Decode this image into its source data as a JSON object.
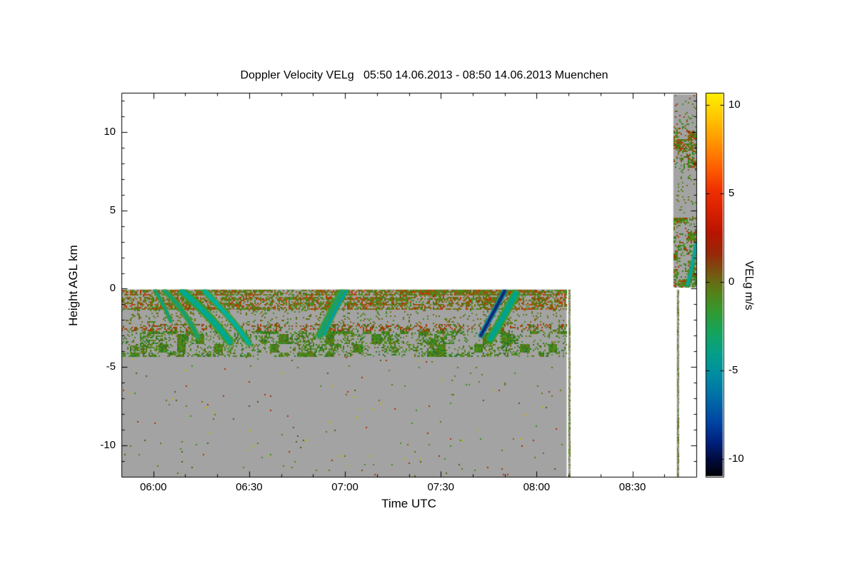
{
  "chart_data": {
    "type": "heatmap",
    "title": "Doppler Velocity VELg   05:50 14.06.2013 - 08:50 14.06.2013 Muenchen",
    "xlabel": "Time UTC",
    "ylabel": "Height AGL km",
    "x_range_labels": [
      "05:50",
      "08:50"
    ],
    "x_range_minutes": [
      350,
      530
    ],
    "y_range_km": [
      -12,
      12.5
    ],
    "x_ticks": [
      {
        "minute": 360,
        "label": "06:00"
      },
      {
        "minute": 390,
        "label": "06:30"
      },
      {
        "minute": 420,
        "label": "07:00"
      },
      {
        "minute": 450,
        "label": "07:30"
      },
      {
        "minute": 480,
        "label": "08:00"
      },
      {
        "minute": 510,
        "label": "08:30"
      }
    ],
    "x_minor_step_minutes": 10,
    "y_ticks": [
      {
        "value": 10,
        "label": "10"
      },
      {
        "value": 5,
        "label": "5"
      },
      {
        "value": 0,
        "label": "0"
      },
      {
        "value": -5,
        "label": "-5"
      },
      {
        "value": -10,
        "label": "-10"
      }
    ],
    "y_minor_step_km": 1,
    "background_color": "#FFFFFF",
    "no_data_color": "#A3A3A3",
    "colorbar": {
      "label": "VELg m/s",
      "value_range": [
        -11,
        10.7
      ],
      "ticks": [
        {
          "value": 10,
          "label": "10"
        },
        {
          "value": 5,
          "label": "5"
        },
        {
          "value": 0,
          "label": "0"
        },
        {
          "value": -5,
          "label": "-5"
        },
        {
          "value": -10,
          "label": "-10"
        }
      ],
      "stops": [
        [
          10.7,
          "#FFF000"
        ],
        [
          9.5,
          "#FFCC00"
        ],
        [
          8,
          "#FF9800"
        ],
        [
          6.5,
          "#FF6000"
        ],
        [
          5.2,
          "#F03000"
        ],
        [
          4,
          "#D82000"
        ],
        [
          2.8,
          "#B81400"
        ],
        [
          1.6,
          "#982808"
        ],
        [
          0.8,
          "#7E4A10"
        ],
        [
          0.2,
          "#6E6414"
        ],
        [
          -0.5,
          "#587E18"
        ],
        [
          -1.5,
          "#38982C"
        ],
        [
          -2.8,
          "#16A45C"
        ],
        [
          -4,
          "#04A088"
        ],
        [
          -5,
          "#00929E"
        ],
        [
          -6.3,
          "#0074A8"
        ],
        [
          -7.8,
          "#0048A4"
        ],
        [
          -9,
          "#002280"
        ],
        [
          -10,
          "#000C40"
        ],
        [
          -11,
          "#000004"
        ]
      ]
    },
    "blocks": [
      {
        "name": "lower-main",
        "t": [
          350,
          489.4
        ],
        "h": [
          -0.05,
          -12
        ]
      },
      {
        "name": "upper-right",
        "t": [
          522.8,
          530
        ],
        "h": [
          12.4,
          0.08
        ]
      }
    ],
    "texture_bands": [
      {
        "h": [
          -0.05,
          -1.3
        ],
        "density": 0.62,
        "clump": 0.35,
        "row_streaks": true,
        "colors": [
          "#6E6E10",
          "#7E7014",
          "#3E8E1E",
          "#4E8E1E",
          "#5E6610",
          "#B03400",
          "#8E5E10",
          "#3E8E1E",
          "#6E6E10",
          "#C84010"
        ]
      },
      {
        "h": [
          -1.3,
          -2.25
        ],
        "density": 0.14,
        "clump": 0.5,
        "colors": [
          "#6E6E10",
          "#3E8E1E",
          "#7E7014",
          "#5E6610"
        ]
      },
      {
        "h": [
          -2.25,
          -2.7
        ],
        "density": 0.4,
        "clump": 0.4,
        "colors": [
          "#B03000",
          "#A83808",
          "#6E6E10",
          "#3E7E1E",
          "#5E6610"
        ]
      },
      {
        "h": [
          -2.7,
          -4.3
        ],
        "density": 0.62,
        "clump": 0.85,
        "colors": [
          "#2E7E1E",
          "#3E8E1E",
          "#4E9420",
          "#5E7E14",
          "#2E6E2E",
          "#6E6E10"
        ]
      },
      {
        "h": [
          -4.3,
          -12
        ],
        "density": 0.008,
        "clump": 0.2,
        "colors": [
          "#6E6E10",
          "#3E8E1E",
          "#B03000",
          "#C8B400",
          "#58581A"
        ]
      }
    ],
    "column_patches": [
      {
        "h": [
          12.4,
          10.6
        ],
        "density": 0.1,
        "clump": 0.6,
        "colors": [
          "#3E8E1E",
          "#6E6E10",
          "#B03400"
        ]
      },
      {
        "h": [
          10.6,
          7.6
        ],
        "density": 0.5,
        "clump": 0.7,
        "colors": [
          "#2E7E1E",
          "#3E8E1E",
          "#6E6E10",
          "#8E5E10",
          "#B03400"
        ]
      },
      {
        "h": [
          7.6,
          4.6
        ],
        "density": 0.08,
        "clump": 0.6,
        "colors": [
          "#3E8E1E",
          "#6E6E10"
        ]
      },
      {
        "h": [
          4.6,
          0.08
        ],
        "density": 0.55,
        "clump": 0.7,
        "colors": [
          "#2E7E1E",
          "#3E8E1E",
          "#4E9420",
          "#6E6E10",
          "#B03400"
        ]
      }
    ],
    "streaks": [
      {
        "region": "lower-main",
        "w": 6,
        "colors": [
          "#3E9E2C",
          "#10A080"
        ],
        "p": [
          [
            360.5,
            -0.1
          ],
          [
            363,
            -1.0
          ],
          [
            365.5,
            -2.1
          ]
        ]
      },
      {
        "region": "lower-main",
        "w": 9,
        "colors": [
          "#4E9E30",
          "#18A070"
        ],
        "p": [
          [
            363.5,
            -0.15
          ],
          [
            369,
            -1.4
          ],
          [
            374,
            -3.1
          ]
        ]
      },
      {
        "region": "lower-main",
        "w": 13,
        "colors": [
          "#3E9E28",
          "#00A890"
        ],
        "p": [
          [
            369,
            -0.15
          ],
          [
            377,
            -1.7
          ],
          [
            384,
            -3.4
          ]
        ]
      },
      {
        "region": "lower-main",
        "w": 10,
        "colors": [
          "#3E9E28",
          "#00B0A0"
        ],
        "p": [
          [
            376,
            -0.15
          ],
          [
            384,
            -1.9
          ],
          [
            390,
            -3.5
          ]
        ]
      },
      {
        "region": "lower-main",
        "w": 12,
        "colors": [
          "#449E2C",
          "#18A070"
        ],
        "p": [
          [
            419,
            -0.2
          ],
          [
            415.5,
            -1.6
          ],
          [
            412,
            -3.0
          ]
        ]
      },
      {
        "region": "lower-main",
        "w": 7,
        "colors": [
          "#3E9E30",
          "#00A0A8"
        ],
        "p": [
          [
            420.5,
            -0.15
          ],
          [
            417,
            -1.4
          ],
          [
            413.5,
            -2.9
          ]
        ]
      },
      {
        "region": "lower-main",
        "w": 13,
        "colors": [
          "#3E9E2C",
          "#00A48C"
        ],
        "p": [
          [
            473.5,
            -0.3
          ],
          [
            469.5,
            -1.8
          ],
          [
            465.5,
            -3.2
          ]
        ]
      },
      {
        "region": "lower-main",
        "w": 8,
        "colors": [
          "#0090A8",
          "#142C78"
        ],
        "p": [
          [
            470,
            -0.15
          ],
          [
            466.5,
            -1.5
          ],
          [
            462.5,
            -3.0
          ]
        ]
      },
      {
        "region": "upper-right",
        "w": 6,
        "colors": [
          "#2AA070",
          "#00A8A0"
        ],
        "p": [
          [
            527.2,
            0.25
          ],
          [
            528.6,
            1.4
          ],
          [
            529.9,
            2.9
          ]
        ]
      }
    ],
    "strips": [
      {
        "t": [
          489.9,
          490.6
        ],
        "h": [
          -0.05,
          -12
        ],
        "density": 0.5,
        "colors": [
          "#6E6E10",
          "#5E6610",
          "#3E8E1E",
          "#8E8E4E"
        ]
      },
      {
        "t": [
          523.9,
          524.6
        ],
        "h": [
          -0.05,
          -12
        ],
        "density": 0.5,
        "colors": [
          "#6E6E10",
          "#5E6610",
          "#3E8E1E",
          "#58581A"
        ]
      }
    ]
  }
}
